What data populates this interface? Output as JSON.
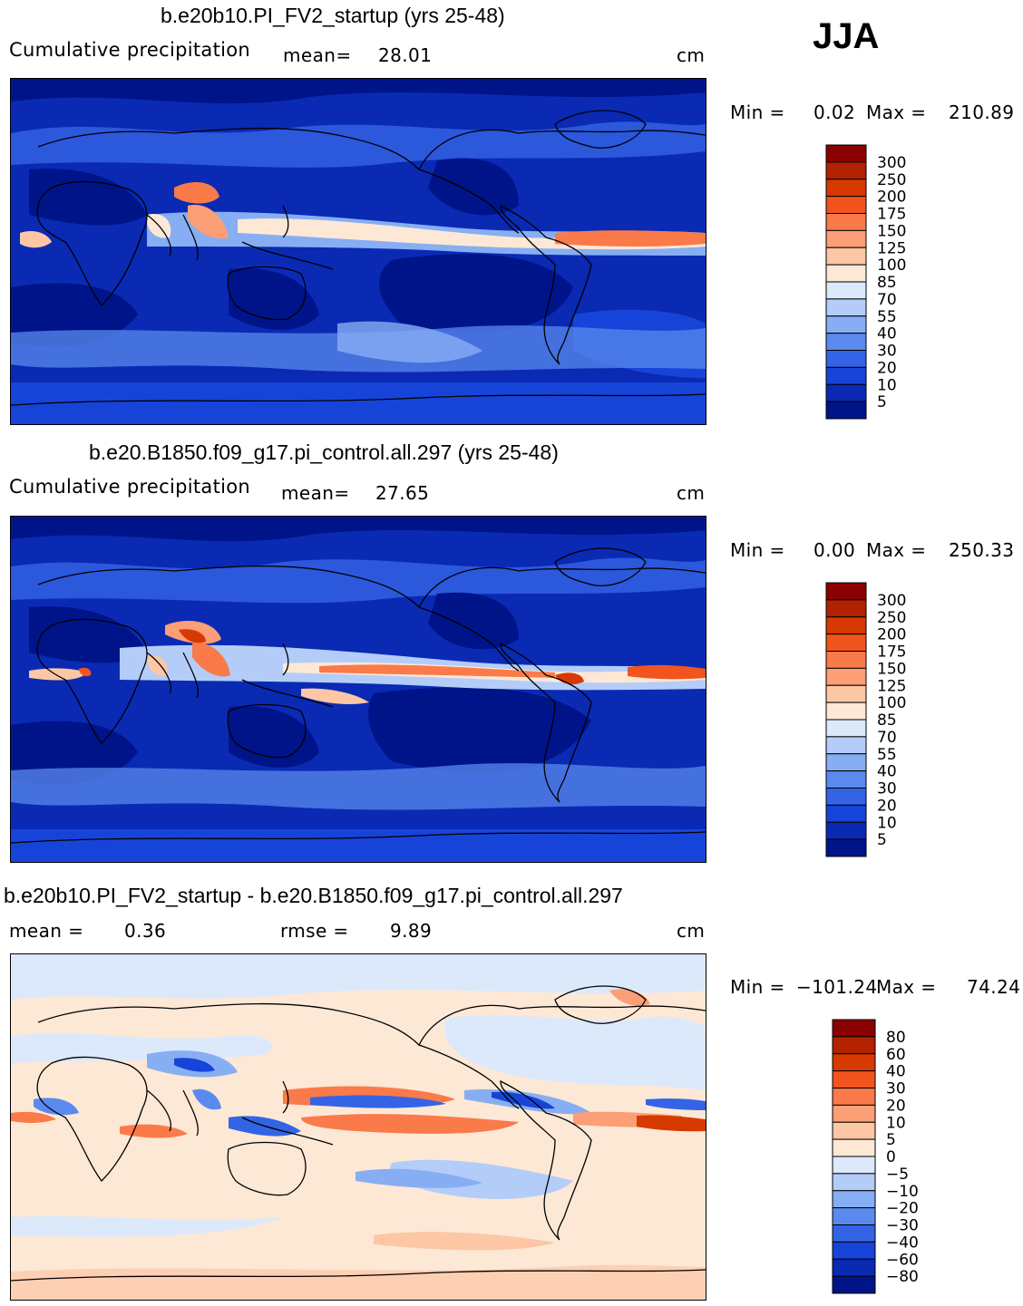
{
  "season": "JJA",
  "panels": [
    {
      "title": "b.e20b10.PI_FV2_startup (yrs 25-48)",
      "left_label": "Cumulative precipitation",
      "stat1_label": "mean=",
      "stat1_value": "28.01",
      "stat2_label": "",
      "stat2_value": "",
      "units": "cm",
      "min_label": "Min =",
      "min_value": "0.02",
      "max_label": "Max =",
      "max_value": "210.89",
      "colorbar_labels": [
        "300",
        "250",
        "200",
        "175",
        "150",
        "125",
        "100",
        "85",
        "70",
        "55",
        "40",
        "30",
        "20",
        "10",
        "5"
      ],
      "colorbar_colors": [
        "#8b0000",
        "#b22200",
        "#d63a00",
        "#f2541e",
        "#fb7a4a",
        "#fc9e76",
        "#fdc6a4",
        "#fde8d6",
        "#dbe9fb",
        "#b3cdf8",
        "#87aef3",
        "#5a8aee",
        "#3464e6",
        "#1744d8",
        "#0a2ab4",
        "#00148a"
      ]
    },
    {
      "title": "b.e20.B1850.f09_g17.pi_control.all.297 (yrs 25-48)",
      "left_label": "Cumulative precipitation",
      "stat1_label": "mean=",
      "stat1_value": "27.65",
      "stat2_label": "",
      "stat2_value": "",
      "units": "cm",
      "min_label": "Min =",
      "min_value": "0.00",
      "max_label": "Max =",
      "max_value": "250.33",
      "colorbar_labels": [
        "300",
        "250",
        "200",
        "175",
        "150",
        "125",
        "100",
        "85",
        "70",
        "55",
        "40",
        "30",
        "20",
        "10",
        "5"
      ],
      "colorbar_colors": [
        "#8b0000",
        "#b22200",
        "#d63a00",
        "#f2541e",
        "#fb7a4a",
        "#fc9e76",
        "#fdc6a4",
        "#fde8d6",
        "#dbe9fb",
        "#b3cdf8",
        "#87aef3",
        "#5a8aee",
        "#3464e6",
        "#1744d8",
        "#0a2ab4",
        "#00148a"
      ]
    },
    {
      "title": "b.e20b10.PI_FV2_startup - b.e20.B1850.f09_g17.pi_control.all.297",
      "left_label": "",
      "stat1_label": "mean =",
      "stat1_value": "0.36",
      "stat2_label": "rmse =",
      "stat2_value": "9.89",
      "units": "cm",
      "min_label": "Min =",
      "min_value": "−101.24",
      "max_label": "Max =",
      "max_value": "74.24",
      "colorbar_labels": [
        "80",
        "60",
        "40",
        "30",
        "20",
        "10",
        "5",
        "0",
        "−5",
        "−10",
        "−20",
        "−30",
        "−40",
        "−60",
        "−80"
      ],
      "colorbar_colors": [
        "#8b0000",
        "#b22200",
        "#d63a00",
        "#f2541e",
        "#fb7a4a",
        "#fc9e76",
        "#fdc6a4",
        "#fde8d6",
        "#dbe9fb",
        "#b3cdf8",
        "#87aef3",
        "#5a8aee",
        "#3464e6",
        "#1744d8",
        "#0a2ab4",
        "#00148a"
      ]
    }
  ]
}
